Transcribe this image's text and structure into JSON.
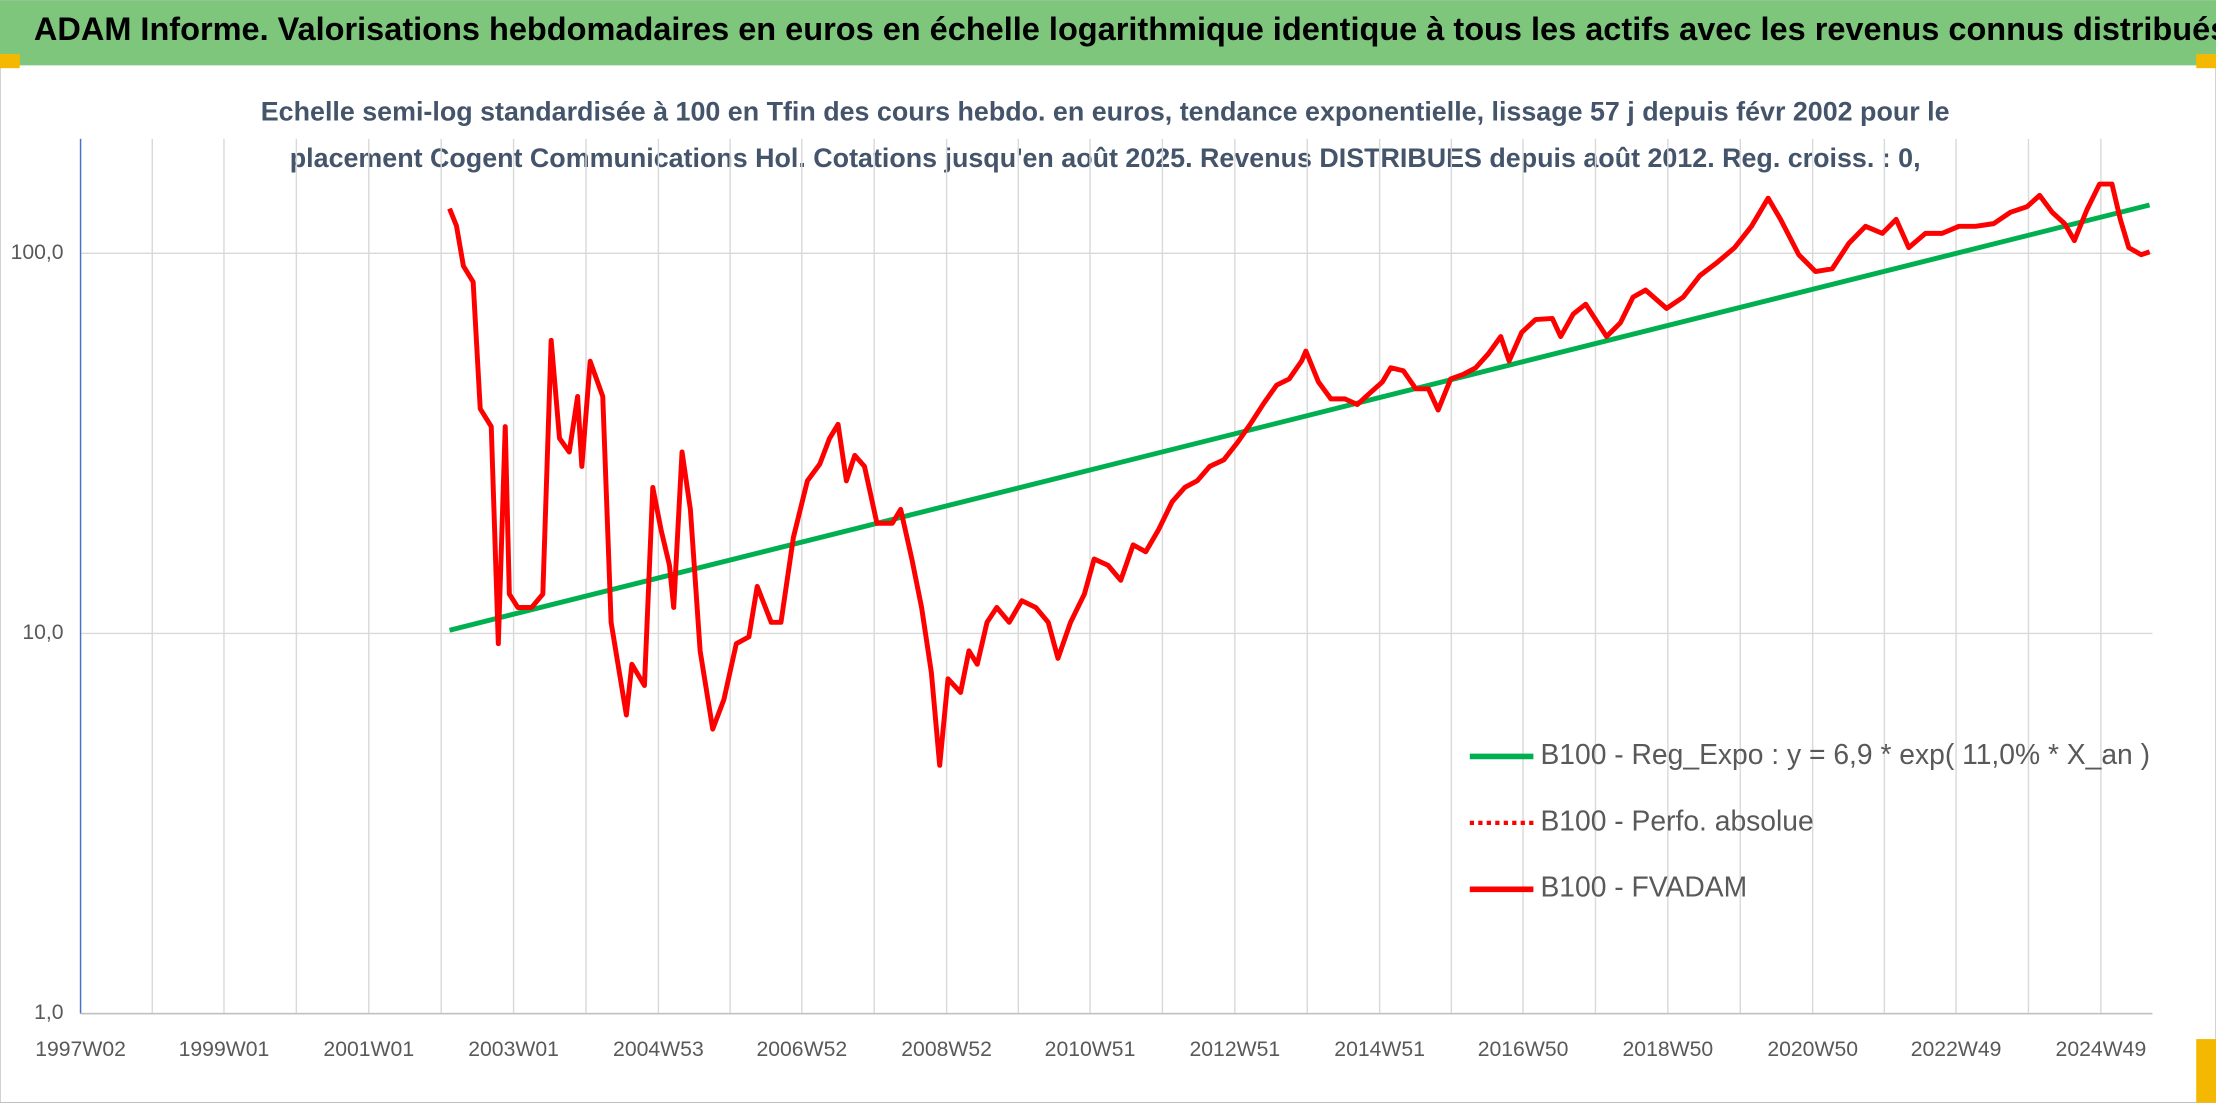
{
  "chart_data": {
    "type": "line",
    "title": "ADAM Informe. Valorisations hebdomadaires en euros en échelle logarithmique identique à tous les actifs avec les revenus connus distribués",
    "subtitle": [
      "Echelle semi-log standardisée à 100 en Tfin des cours hebdo. en euros, tendance exponentielle, lissage 57 j depuis févr 2002 pour le",
      "placement Cogent Communications Hol. Cotations jusqu'en août 2025. Revenus DISTRIBUES depuis août 2012. Reg. croiss. : 0,"
    ],
    "log_scale": true,
    "grid": true,
    "legend_position": "lower right",
    "xlim": [
      "1997W02",
      "2025W34"
    ],
    "xticks": [
      "1997W02",
      "1999W01",
      "2001W01",
      "2003W01",
      "2004W53",
      "2006W52",
      "2008W52",
      "2010W51",
      "2012W51",
      "2014W51",
      "2016W50",
      "2018W50",
      "2020W50",
      "2022W49",
      "2024W49"
    ],
    "ylim": [
      1,
      200
    ],
    "yticks": [
      {
        "value": 1,
        "label": "1,0"
      },
      {
        "value": 10,
        "label": "10,0"
      },
      {
        "value": 100,
        "label": "100,0"
      }
    ],
    "x": [
      "2002W07",
      "2002W12",
      "2002W17",
      "2002W24",
      "2002W29",
      "2002W37",
      "2002W42",
      "2002W47",
      "2002W50",
      "2003W04",
      "2003W14",
      "2003W22",
      "2003W28",
      "2003W34",
      "2003W41",
      "2003W47",
      "2003W50",
      "2004W04",
      "2004W13",
      "2004W19",
      "2004W30",
      "2004W34",
      "2004W43",
      "2004W49",
      "2005W03",
      "2005W09",
      "2005W12",
      "2005W18",
      "2005W24",
      "2005W31",
      "2005W40",
      "2005W48",
      "2006W05",
      "2006W14",
      "2006W20",
      "2006W30",
      "2006W37",
      "2006W46",
      "2007W04",
      "2007W13",
      "2007W20",
      "2007W26",
      "2007W32",
      "2007W38",
      "2007W45",
      "2008W02",
      "2008W13",
      "2008W19",
      "2008W27",
      "2008W34",
      "2008W41",
      "2008W47",
      "2009W01",
      "2009W10",
      "2009W16",
      "2009W22",
      "2009W29",
      "2009W36",
      "2009W45",
      "2010W02",
      "2010W12",
      "2010W21",
      "2010W28",
      "2010W37",
      "2010W47",
      "2011W02",
      "2011W12",
      "2011W21",
      "2011W30",
      "2011W39",
      "2011W48",
      "2012W06",
      "2012W15",
      "2012W24",
      "2012W33",
      "2012W43",
      "2013W01",
      "2013W10",
      "2013W20",
      "2013W29",
      "2013W38",
      "2013W47",
      "2013W50",
      "2014W07",
      "2014W16",
      "2014W26",
      "2014W35",
      "2014W44",
      "2015W01",
      "2015W07",
      "2015W16",
      "2015W25",
      "2015W34",
      "2015W41",
      "2015W50",
      "2016W07",
      "2016W16",
      "2016W25",
      "2016W34",
      "2016W40",
      "2016W49",
      "2017W07",
      "2017W19",
      "2017W25",
      "2017W34",
      "2017W43",
      "2018W06",
      "2018W16",
      "2018W25",
      "2018W34",
      "2018W49",
      "2019W09",
      "2019W21",
      "2019W34",
      "2019W46",
      "2020W06",
      "2020W18",
      "2020W27",
      "2020W40",
      "2020W52",
      "2021W12",
      "2021W24",
      "2021W36",
      "2021W48",
      "2022W06",
      "2022W15",
      "2022W27",
      "2022W39",
      "2022W51",
      "2023W11",
      "2023W24",
      "2023W36",
      "2023W48",
      "2024W05",
      "2024W14",
      "2024W23",
      "2024W30",
      "2024W39",
      "2024W48",
      "2025W05",
      "2025W11",
      "2025W17",
      "2025W26",
      "2025W32"
    ],
    "series": [
      {
        "name": "B100 - Reg_Expo : y = 6,9 * exp( 11,0% *  X_an )",
        "color": "#00b050",
        "style": "solid",
        "x": [
          "2002W07",
          "2025W32"
        ],
        "values": [
          10.2,
          134
        ]
      },
      {
        "name": "B100 - Perfo. absolue",
        "color": "#ff0000",
        "style": "dotted",
        "values": [
          131,
          118,
          92.6,
          84,
          39,
          35,
          9.4,
          35,
          12.7,
          11.7,
          11.7,
          12.7,
          59,
          32.6,
          30,
          42,
          27.5,
          52,
          42,
          10.7,
          6.1,
          8.3,
          7.3,
          24.2,
          18.7,
          15.1,
          11.7,
          30,
          21.2,
          9,
          5.6,
          6.7,
          9.4,
          9.8,
          13.3,
          10.7,
          10.7,
          17.9,
          25.2,
          27.9,
          32.6,
          35.5,
          25.2,
          29.4,
          27.5,
          19.5,
          19.5,
          21.2,
          15.7,
          11.7,
          7.9,
          4.5,
          7.6,
          7,
          9,
          8.3,
          10.7,
          11.7,
          10.7,
          12.2,
          11.7,
          10.7,
          8.6,
          10.7,
          12.7,
          15.7,
          15.1,
          13.8,
          17.1,
          16.4,
          18.7,
          22.2,
          24.2,
          25.2,
          27.5,
          28.6,
          31.8,
          35.5,
          40.4,
          45,
          46.7,
          52.1,
          55.3,
          45.9,
          41.4,
          41.4,
          40,
          42.9,
          45.9,
          50,
          49.1,
          44,
          44,
          38.7,
          46.7,
          48,
          50,
          54.4,
          60.4,
          52.1,
          61.9,
          66.9,
          67.4,
          60.4,
          69.2,
          73.5,
          60.4,
          65.7,
          76.7,
          80,
          71.6,
          76.7,
          87.3,
          95,
          103.5,
          117.7,
          139.6,
          122.8,
          99.1,
          89.5,
          91,
          106.2,
          117.7,
          112.8,
          122.8,
          103.5,
          112.8,
          112.8,
          117.7,
          117.7,
          119.7,
          128.2,
          132.6,
          142,
          128.2,
          119.7,
          108,
          130.3,
          152.1,
          152.1,
          122.8,
          103.5,
          99.1,
          100.8
        ]
      },
      {
        "name": "B100 - FVADAM",
        "color": "#ff0000",
        "style": "solid",
        "values": [
          131,
          118,
          92.6,
          84,
          39,
          35,
          9.4,
          35,
          12.7,
          11.7,
          11.7,
          12.7,
          59,
          32.6,
          30,
          42,
          27.5,
          52,
          42,
          10.7,
          6.1,
          8.3,
          7.3,
          24.2,
          18.7,
          15.1,
          11.7,
          30,
          21.2,
          9,
          5.6,
          6.7,
          9.4,
          9.8,
          13.3,
          10.7,
          10.7,
          17.9,
          25.2,
          27.9,
          32.6,
          35.5,
          25.2,
          29.4,
          27.5,
          19.5,
          19.5,
          21.2,
          15.7,
          11.7,
          7.9,
          4.5,
          7.6,
          7,
          9,
          8.3,
          10.7,
          11.7,
          10.7,
          12.2,
          11.7,
          10.7,
          8.6,
          10.7,
          12.7,
          15.7,
          15.1,
          13.8,
          17.1,
          16.4,
          18.7,
          22.2,
          24.2,
          25.2,
          27.5,
          28.6,
          31.8,
          35.5,
          40.4,
          45,
          46.7,
          52.1,
          55.3,
          45.9,
          41.4,
          41.4,
          40,
          42.9,
          45.9,
          50,
          49.1,
          44,
          44,
          38.7,
          46.7,
          48,
          50,
          54.4,
          60.4,
          52.1,
          61.9,
          66.9,
          67.4,
          60.4,
          69.2,
          73.5,
          60.4,
          65.7,
          76.7,
          80,
          71.6,
          76.7,
          87.3,
          95,
          103.5,
          117.7,
          139.6,
          122.8,
          99.1,
          89.5,
          91,
          106.2,
          117.7,
          112.8,
          122.8,
          103.5,
          112.8,
          112.8,
          117.7,
          117.7,
          119.7,
          128.2,
          132.6,
          142,
          128.2,
          119.7,
          108,
          130.3,
          152.1,
          152.1,
          122.8,
          103.5,
          99.1,
          100.8
        ]
      }
    ]
  }
}
